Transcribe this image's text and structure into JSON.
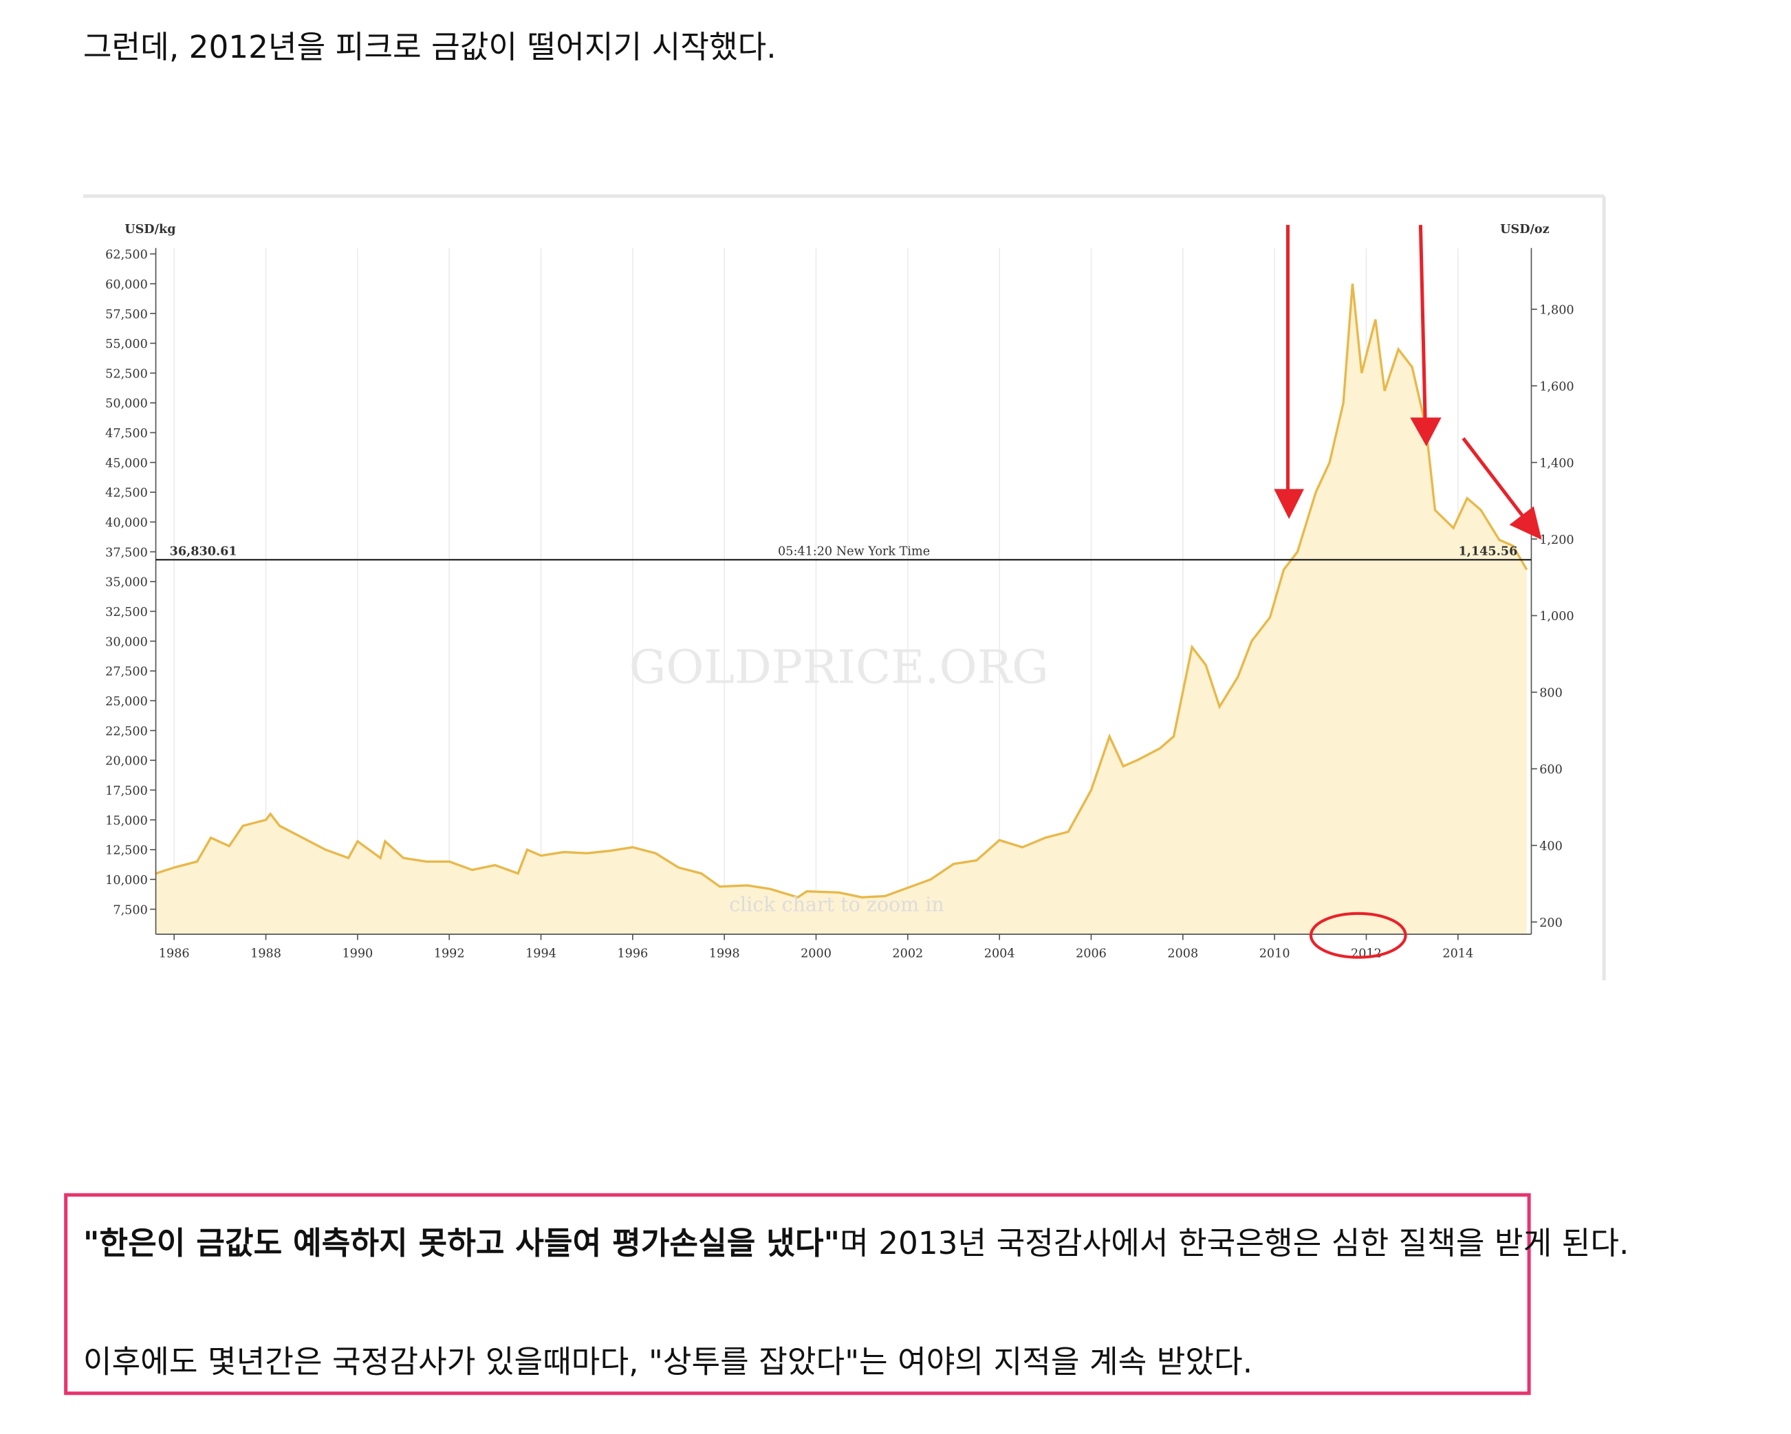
{
  "intro": "그런데, 2012년을 피크로 금값이 떨어지기 시작했다.",
  "quote": {
    "bold": "\"한은이 금값도 예측하지 못하고 사들여 평가손실을 냈다\"",
    "rest": "며 2013년 국정감사에서 한국은행은 심한 질책을 받게 된다."
  },
  "followup": "이후에도 몇년간은 국정감사가 있을때마다, \"상투를 잡았다\"는 여야의 지적을 계속 받았다.",
  "chart_data": {
    "type": "area",
    "y_label": "USD/kg",
    "y2_label": "USD/oz",
    "watermark": "GOLDPRICE.ORG",
    "hint": "click chart to zoom in",
    "reference_line": {
      "value": 36830.61,
      "left_label": "36,830.61",
      "right_label": "1,145.56",
      "time_label": "05:41:20 New York Time"
    },
    "xlim": [
      1985.6,
      2015.6
    ],
    "xticks": [
      1986,
      1988,
      1990,
      1992,
      1994,
      1996,
      1998,
      2000,
      2002,
      2004,
      2006,
      2008,
      2010,
      2012,
      2014
    ],
    "ylim": [
      5400,
      63000
    ],
    "yticks": [
      {
        "value": 7500,
        "label": "7,500"
      },
      {
        "value": 10000,
        "label": "10,000"
      },
      {
        "value": 12500,
        "label": "12,500"
      },
      {
        "value": 15000,
        "label": "15,000"
      },
      {
        "value": 17500,
        "label": "17,500"
      },
      {
        "value": 20000,
        "label": "20,000"
      },
      {
        "value": 22500,
        "label": "22,500"
      },
      {
        "value": 25000,
        "label": "25,000"
      },
      {
        "value": 27500,
        "label": "27,500"
      },
      {
        "value": 30000,
        "label": "30,000"
      },
      {
        "value": 32500,
        "label": "32,500"
      },
      {
        "value": 35000,
        "label": "35,000"
      },
      {
        "value": 37500,
        "label": "37,500"
      },
      {
        "value": 40000,
        "label": "40,000"
      },
      {
        "value": 42500,
        "label": "42,500"
      },
      {
        "value": 45000,
        "label": "45,000"
      },
      {
        "value": 47500,
        "label": "47,500"
      },
      {
        "value": 50000,
        "label": "50,000"
      },
      {
        "value": 52500,
        "label": "52,500"
      },
      {
        "value": 55000,
        "label": "55,000"
      },
      {
        "value": 57500,
        "label": "57,500"
      },
      {
        "value": 60000,
        "label": "60,000"
      },
      {
        "value": 62500,
        "label": "62,500"
      }
    ],
    "y2lim": [
      168,
      1960
    ],
    "y2ticks": [
      200,
      400,
      600,
      800,
      {
        "value": 1000,
        "label": "1,000"
      },
      {
        "value": 1200,
        "label": "1,200"
      },
      {
        "value": 1400,
        "label": "1,400"
      },
      {
        "value": 1600,
        "label": "1,600"
      },
      {
        "value": 1800,
        "label": "1,800"
      }
    ],
    "grid": true,
    "x": [
      1985.6,
      1986.0,
      1986.5,
      1986.8,
      1987.2,
      1987.5,
      1988.0,
      1988.1,
      1988.3,
      1988.8,
      1989.3,
      1989.8,
      1990.0,
      1990.5,
      1990.6,
      1991.0,
      1991.5,
      1992.0,
      1992.5,
      1993.0,
      1993.5,
      1993.7,
      1994.0,
      1994.5,
      1995.0,
      1995.5,
      1996.0,
      1996.5,
      1997.0,
      1997.5,
      1997.9,
      1998.5,
      1999.0,
      1999.6,
      1999.8,
      2000.5,
      2001.0,
      2001.5,
      2002.0,
      2002.5,
      2003.0,
      2003.5,
      2004.0,
      2004.5,
      2005.0,
      2005.5,
      2006.0,
      2006.4,
      2006.7,
      2007.0,
      2007.5,
      2007.8,
      2008.2,
      2008.5,
      2008.8,
      2009.2,
      2009.5,
      2009.9,
      2010.2,
      2010.5,
      2010.9,
      2011.2,
      2011.5,
      2011.7,
      2011.9,
      2012.2,
      2012.4,
      2012.7,
      2013.0,
      2013.3,
      2013.5,
      2013.9,
      2014.2,
      2014.5,
      2014.9,
      2015.2,
      2015.5
    ],
    "series": [
      {
        "color": "#e8b84a",
        "values": [
          10500,
          11000,
          11500,
          13500,
          12800,
          14500,
          15000,
          15500,
          14500,
          13500,
          12500,
          11800,
          13200,
          11800,
          13200,
          11800,
          11500,
          11500,
          10800,
          11200,
          10500,
          12500,
          12000,
          12300,
          12200,
          12400,
          12700,
          12200,
          11000,
          10500,
          9400,
          9500,
          9200,
          8500,
          9000,
          8900,
          8500,
          8600,
          9300,
          10000,
          11300,
          11600,
          13300,
          12700,
          13500,
          14000,
          17500,
          22000,
          19500,
          20000,
          21000,
          22000,
          29500,
          28000,
          24500,
          27000,
          30000,
          32000,
          36000,
          37500,
          42500,
          45000,
          50000,
          60000,
          52500,
          57000,
          51000,
          54500,
          53000,
          48000,
          41000,
          39500,
          42000,
          41000,
          38500,
          38000,
          36000
        ]
      }
    ]
  }
}
